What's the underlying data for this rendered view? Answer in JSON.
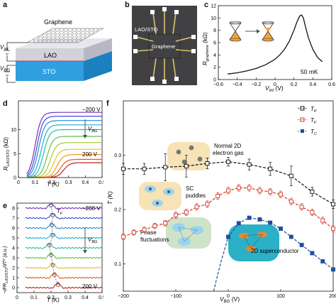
{
  "panels": {
    "a": {
      "letter": "a",
      "layer_labels": [
        "Graphene",
        "LAO",
        "STO"
      ],
      "voltage_labels": {
        "vint_v": "V",
        "vint_sub": "int",
        "vbg_v": "V",
        "vbg_sub": "BG"
      }
    },
    "b": {
      "letter": "b",
      "labels": [
        "LAO/STO",
        "Graphene"
      ]
    },
    "c": {
      "letter": "c",
      "xlabel_v": "V",
      "xlabel_sub": "int",
      "xlabel_unit": " (V)",
      "ylabel_r": "R",
      "ylabel_sub": "graphene",
      "ylabel_unit": " (kΩ)",
      "annotation": "50 mK",
      "xticks": [
        "−0.6",
        "−0.4",
        "−0.2",
        "0",
        "0.2",
        "0.4",
        "0.6"
      ],
      "yticks": [
        "0",
        "2",
        "4",
        "6",
        "8",
        "10",
        "12"
      ]
    },
    "d": {
      "letter": "d",
      "ylabel_r": "R",
      "ylabel_sub": "LAO/STO",
      "ylabel_unit": " (kΩ)",
      "xlabel": "T (K)",
      "xticks": [
        "0",
        "0.1",
        "0.2",
        "0.3",
        "0.4",
        "0.5"
      ],
      "yticks": [
        "0",
        "5",
        "10"
      ],
      "top_label": "−200 V",
      "bottom_label": "200 V",
      "vbg_v": "V",
      "vbg_sub": "BG"
    },
    "e": {
      "letter": "e",
      "ylabel": "−d²R",
      "ylabel_sub": "LAO/STO",
      "ylabel_tail": "/dT² (a.u.)",
      "xlabel": "T (K)",
      "xticks": [
        "0",
        "0.1",
        "0.2",
        "0.3",
        "0.4",
        "0.5"
      ],
      "yticks": [
        "8",
        "7",
        "6",
        "5",
        "4",
        "3",
        "2",
        "1",
        "0"
      ],
      "top_label": "−200 V",
      "bottom_label": "200 V",
      "tf_t": "T",
      "tf_sub": "F",
      "vbg_v": "V",
      "vbg_sub": "BG"
    },
    "f": {
      "letter": "f",
      "ylabel": "T (K)",
      "xlabel_v": "V",
      "xlabel_sub": "BG",
      "xlabel_unit": " (V)",
      "xticks": [
        "−200",
        "−100",
        "0",
        "100",
        "200"
      ],
      "yticks": [
        "0.1",
        "0.2",
        "0.3"
      ],
      "legend": [
        {
          "t": "T",
          "sub": "P"
        },
        {
          "t": "T",
          "sub": "F"
        },
        {
          "t": "T",
          "sub": "C"
        }
      ],
      "region_labels": {
        "normal_1": "Normal 2D",
        "normal_2": "electron gas",
        "sc_1": "SC",
        "sc_2": "puddles",
        "phase_1": "Phase",
        "phase_2": "fluctuations",
        "super": "2D superconductor"
      }
    }
  },
  "chart_data": [
    {
      "panel": "c",
      "type": "line",
      "xlabel": "Vint (V)",
      "ylabel": "Rgraphene (kΩ)",
      "xlim": [
        -0.6,
        0.6
      ],
      "ylim": [
        0,
        12
      ],
      "annotation": "50 mK",
      "series": [
        {
          "x": [
            -0.5,
            -0.4,
            -0.3,
            -0.2,
            -0.1,
            0,
            0.05,
            0.1,
            0.15,
            0.2,
            0.23,
            0.26,
            0.28,
            0.3,
            0.32,
            0.35,
            0.4,
            0.45,
            0.5
          ],
          "values": [
            0.9,
            1.1,
            1.4,
            1.8,
            2.4,
            3.3,
            4.0,
            4.9,
            6.2,
            8.0,
            9.3,
            10.3,
            10.5,
            10.0,
            8.7,
            6.9,
            4.9,
            3.6,
            2.9
          ]
        }
      ]
    },
    {
      "panel": "d",
      "type": "line",
      "xlabel": "T (K)",
      "ylabel": "RLAO/STO (kΩ)",
      "xlim": [
        0,
        0.5
      ],
      "ylim": [
        0,
        16
      ],
      "series": [
        {
          "label": "−200 V",
          "tc": 0.1,
          "rn": 13.6,
          "color": "#7b2fbe"
        },
        {
          "label": "",
          "tc": 0.11,
          "rn": 12.8,
          "color": "#3d4fd6"
        },
        {
          "label": "",
          "tc": 0.12,
          "rn": 11.9,
          "color": "#2a8ad8"
        },
        {
          "label": "",
          "tc": 0.135,
          "rn": 11.0,
          "color": "#1eb0d8"
        },
        {
          "label": "",
          "tc": 0.15,
          "rn": 10.0,
          "color": "#22c0a8"
        },
        {
          "label": "",
          "tc": 0.17,
          "rn": 8.6,
          "color": "#5cc24a"
        },
        {
          "label": "",
          "tc": 0.19,
          "rn": 7.3,
          "color": "#a4cc2e"
        },
        {
          "label": "",
          "tc": 0.21,
          "rn": 5.9,
          "color": "#e2c41f"
        },
        {
          "label": "",
          "tc": 0.23,
          "rn": 4.8,
          "color": "#f29a1e"
        },
        {
          "label": "",
          "tc": 0.25,
          "rn": 3.8,
          "color": "#ea5a1c"
        },
        {
          "label": "200 V",
          "tc": 0.27,
          "rn": 3.1,
          "color": "#c91e1e"
        }
      ]
    },
    {
      "panel": "e",
      "type": "line",
      "xlabel": "T (K)",
      "ylabel": "−d²RLAO/STO/dT² (a.u.)",
      "xlim": [
        0,
        0.5
      ],
      "ylim": [
        -0.5,
        8.5
      ],
      "series": [
        {
          "label": "−200 V",
          "offset": 8,
          "tf": 0.2,
          "color": "#7b2fbe"
        },
        {
          "label": "",
          "offset": 7,
          "tf": 0.21,
          "color": "#3d4fd6"
        },
        {
          "label": "",
          "offset": 6,
          "tf": 0.205,
          "color": "#2a8ad8"
        },
        {
          "label": "",
          "offset": 5,
          "tf": 0.21,
          "color": "#1eb0d8"
        },
        {
          "label": "",
          "offset": 4,
          "tf": 0.19,
          "color": "#22c0a8"
        },
        {
          "label": "",
          "offset": 3,
          "tf": 0.2,
          "color": "#5cc24a"
        },
        {
          "label": "",
          "offset": 2,
          "tf": 0.21,
          "color": "#e2c41f"
        },
        {
          "label": "",
          "offset": 1,
          "tf": 0.22,
          "color": "#ea5a1c"
        },
        {
          "label": "200 V",
          "offset": 0,
          "tf": 0.24,
          "color": "#c91e1e"
        }
      ]
    },
    {
      "panel": "f",
      "type": "scatter",
      "xlabel": "VBG (V)",
      "ylabel": "T (K)",
      "xlim": [
        -200,
        200
      ],
      "ylim": [
        0.05,
        0.4
      ],
      "series": [
        {
          "name": "TP",
          "color": "#111111",
          "marker": "open-square",
          "x": [
            -200,
            -160,
            -120,
            -80,
            -40,
            0,
            40,
            80,
            120,
            160,
            200
          ],
          "values": [
            0.275,
            0.275,
            0.278,
            0.28,
            0.285,
            0.288,
            0.283,
            0.275,
            0.262,
            0.233,
            0.21
          ],
          "err": [
            0.01,
            0.01,
            0.025,
            0.02,
            0.01,
            0.008,
            0.01,
            0.012,
            0.018,
            0.008,
            0.008
          ]
        },
        {
          "name": "TF",
          "color": "#d23a2a",
          "marker": "open-square",
          "x": [
            -200,
            -180,
            -160,
            -140,
            -120,
            -100,
            -80,
            -60,
            -40,
            -20,
            0,
            20,
            40,
            60,
            80,
            100,
            120,
            140,
            160,
            180,
            200
          ],
          "values": [
            0.15,
            0.158,
            0.163,
            0.17,
            0.175,
            0.19,
            0.195,
            0.205,
            0.21,
            0.225,
            0.235,
            0.24,
            0.24,
            0.235,
            0.233,
            0.228,
            0.215,
            0.205,
            0.195,
            0.18,
            0.165
          ],
          "err": [
            0.005,
            0.005,
            0.005,
            0.005,
            0.005,
            0.006,
            0.006,
            0.006,
            0.006,
            0.006,
            0.006,
            0.006,
            0.006,
            0.006,
            0.006,
            0.006,
            0.006,
            0.006,
            0.006,
            0.006,
            0.006
          ]
        },
        {
          "name": "TC",
          "color": "#1f4f9c",
          "marker": "filled-square",
          "x": [
            0,
            20,
            40,
            60,
            80,
            100,
            120,
            140,
            160,
            180,
            200
          ],
          "values": [
            0.15,
            0.175,
            0.185,
            0.182,
            0.176,
            0.165,
            0.15,
            0.135,
            0.12,
            0.105,
            0.09
          ]
        }
      ]
    }
  ]
}
